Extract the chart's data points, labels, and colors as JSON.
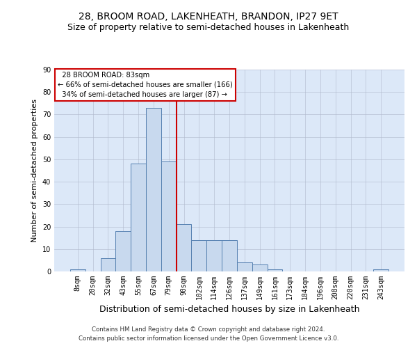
{
  "title": "28, BROOM ROAD, LAKENHEATH, BRANDON, IP27 9ET",
  "subtitle": "Size of property relative to semi-detached houses in Lakenheath",
  "xlabel": "Distribution of semi-detached houses by size in Lakenheath",
  "ylabel": "Number of semi-detached properties",
  "footer1": "Contains HM Land Registry data © Crown copyright and database right 2024.",
  "footer2": "Contains public sector information licensed under the Open Government Licence v3.0.",
  "bin_labels": [
    "8sqm",
    "20sqm",
    "32sqm",
    "43sqm",
    "55sqm",
    "67sqm",
    "79sqm",
    "90sqm",
    "102sqm",
    "114sqm",
    "126sqm",
    "137sqm",
    "149sqm",
    "161sqm",
    "173sqm",
    "184sqm",
    "196sqm",
    "208sqm",
    "220sqm",
    "231sqm",
    "243sqm"
  ],
  "bar_values": [
    1,
    0,
    6,
    18,
    48,
    73,
    49,
    21,
    14,
    14,
    14,
    4,
    3,
    1,
    0,
    0,
    0,
    0,
    0,
    0,
    1
  ],
  "bar_color": "#c8d9ee",
  "bar_edge_color": "#5580b0",
  "vline_x": 6.5,
  "vline_color": "#cc0000",
  "annotation_text": "  28 BROOM ROAD: 83sqm\n← 66% of semi-detached houses are smaller (166)\n  34% of semi-detached houses are larger (87) →",
  "annotation_box_color": "#ffffff",
  "annotation_box_edge": "#cc0000",
  "ylim": [
    0,
    90
  ],
  "yticks": [
    0,
    10,
    20,
    30,
    40,
    50,
    60,
    70,
    80,
    90
  ],
  "bg_color": "#dce8f8",
  "title_fontsize": 10,
  "subtitle_fontsize": 9,
  "tick_fontsize": 7,
  "xlabel_fontsize": 9,
  "ylabel_fontsize": 8
}
